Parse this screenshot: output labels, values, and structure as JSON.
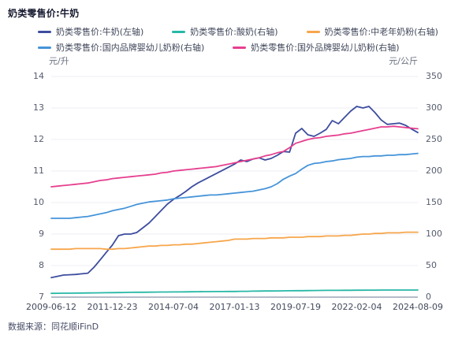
{
  "title": "奶类零售价:牛奶",
  "source_note": "数据来源：同花顺iFinD",
  "axes": {
    "left_unit": "元/升",
    "right_unit": "元/公斤",
    "left_ticks": [
      14,
      13,
      12,
      11,
      10,
      9,
      8,
      7
    ],
    "right_ticks": [
      350,
      300,
      250,
      200,
      150,
      100,
      50,
      0
    ],
    "left_range": [
      7,
      14
    ],
    "right_range": [
      0,
      350
    ]
  },
  "chart_data": {
    "type": "line",
    "title": "奶类零售价:牛奶",
    "xlabel": "",
    "ylabel_left": "元/升",
    "ylabel_right": "元/公斤",
    "ylim_left": [
      7,
      14
    ],
    "ylim_right": [
      0,
      350
    ],
    "grid": true,
    "legend_position": "top",
    "x_tick_labels": [
      "2009-06-12",
      "2011-12-23",
      "2014-07-04",
      "2017-01-13",
      "2019-07-19",
      "2022-02-04",
      "2024-08-09"
    ],
    "x_start": "2009-06-12",
    "x_end": "2024-08-09",
    "sample_interval": "quarterly (61 evenly spaced samples)",
    "series": [
      {
        "name": "奶类零售价:牛奶(左轴)",
        "axis": "left",
        "unit": "元/升",
        "color": "#3d4d9e",
        "values": [
          7.62,
          7.66,
          7.7,
          7.71,
          7.72,
          7.74,
          7.76,
          7.95,
          8.18,
          8.42,
          8.65,
          8.95,
          9.0,
          9.0,
          9.05,
          9.2,
          9.35,
          9.55,
          9.75,
          9.95,
          10.1,
          10.22,
          10.35,
          10.5,
          10.62,
          10.72,
          10.82,
          10.92,
          11.02,
          11.12,
          11.22,
          11.35,
          11.3,
          11.38,
          11.42,
          11.35,
          11.4,
          11.5,
          11.62,
          11.6,
          12.2,
          12.35,
          12.15,
          12.1,
          12.2,
          12.32,
          12.6,
          12.5,
          12.7,
          12.9,
          13.05,
          13.0,
          13.05,
          12.85,
          12.62,
          12.48,
          12.5,
          12.52,
          12.45,
          12.33,
          12.22
        ]
      },
      {
        "name": "奶类零售价:酸奶(右轴)",
        "axis": "right",
        "unit": "元/公斤",
        "color": "#27b8a5",
        "values": [
          6.0,
          6.1,
          6.2,
          6.3,
          6.4,
          6.5,
          6.6,
          6.8,
          6.9,
          7.0,
          7.1,
          7.3,
          7.4,
          7.6,
          7.7,
          7.8,
          7.9,
          8.0,
          8.1,
          8.1,
          8.2,
          8.3,
          8.4,
          8.5,
          8.6,
          8.7,
          8.8,
          8.9,
          8.9,
          9.0,
          9.0,
          9.2,
          9.3,
          9.5,
          9.6,
          9.7,
          9.8,
          9.9,
          10.0,
          10.1,
          10.2,
          10.3,
          10.4,
          10.5,
          10.6,
          10.7,
          10.8,
          10.8,
          10.9,
          10.9,
          11.0,
          11.0,
          11.1,
          11.1,
          11.2,
          11.2,
          11.2,
          11.3,
          11.3,
          11.3,
          11.3
        ]
      },
      {
        "name": "奶类零售价:中老年奶粉(右轴)",
        "axis": "right",
        "unit": "元/公斤",
        "color": "#f7a64b",
        "values": [
          76,
          76,
          76,
          76,
          77,
          77,
          77,
          77,
          77,
          76,
          76,
          77,
          77,
          78,
          79,
          80,
          81,
          81,
          82,
          82,
          83,
          83,
          84,
          84,
          85,
          86,
          87,
          88,
          89,
          90,
          92,
          92,
          92,
          93,
          93,
          93,
          94,
          94,
          94,
          95,
          95,
          95,
          96,
          96,
          96,
          97,
          97,
          97,
          98,
          98,
          99,
          100,
          100,
          101,
          101,
          102,
          102,
          102,
          103,
          103,
          103
        ]
      },
      {
        "name": "奶类零售价:国内品牌婴幼儿奶粉(右轴)",
        "axis": "right",
        "unit": "元/公斤",
        "color": "#4594d9",
        "values": [
          125,
          125,
          125,
          125,
          126,
          127,
          128,
          130,
          132,
          134,
          137,
          139,
          141,
          144,
          147,
          149,
          151,
          152,
          153,
          154,
          156,
          157,
          158,
          159,
          160,
          161,
          162,
          162,
          163,
          164,
          165,
          166,
          167,
          168,
          170,
          172,
          175,
          180,
          187,
          192,
          196,
          203,
          209,
          212,
          213,
          215,
          216,
          218,
          219,
          220,
          222,
          223,
          223,
          224,
          224,
          225,
          225,
          226,
          226,
          227,
          228
        ]
      },
      {
        "name": "奶类零售价:国外品牌婴幼儿奶粉(右轴)",
        "axis": "right",
        "unit": "元/公斤",
        "color": "#e63f8f",
        "values": [
          175,
          176,
          177,
          178,
          179,
          180,
          181,
          183,
          185,
          186,
          188,
          189,
          190,
          191,
          192,
          193,
          194,
          195,
          197,
          198,
          200,
          201,
          202,
          203,
          204,
          205,
          206,
          207,
          209,
          211,
          213,
          215,
          217,
          219,
          221,
          224,
          226,
          229,
          231,
          237,
          244,
          247,
          250,
          252,
          253,
          255,
          256,
          257,
          259,
          260,
          262,
          264,
          266,
          268,
          270,
          270,
          271,
          270,
          269,
          268,
          267
        ]
      }
    ],
    "legend_rows": [
      [
        0,
        1,
        2
      ],
      [
        3,
        4
      ]
    ]
  },
  "colors": {
    "grid_line": "#ededf4",
    "axis_line": "#b4bbc9",
    "tick_text": "#565c6e",
    "title_text": "#16192e"
  }
}
